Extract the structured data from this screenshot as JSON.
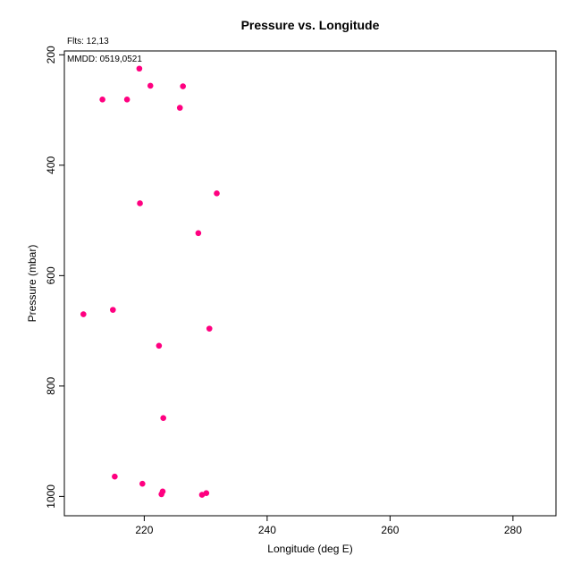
{
  "chart_data": {
    "type": "scatter",
    "title": "Pressure vs. Longitude",
    "xlabel": "Longitude (deg E)",
    "ylabel": "Pressure (mbar)",
    "flts_label": "Flts: 12,13",
    "mmdd_label": "MMDD: 0519,0521",
    "xlim": [
      207,
      287
    ],
    "ylim": [
      1035,
      193
    ],
    "y_inverted": true,
    "x_ticks": [
      220,
      240,
      260,
      280
    ],
    "y_ticks": [
      200,
      400,
      600,
      800,
      1000
    ],
    "marker_color": "#ff0080",
    "points": [
      {
        "x": 219.2,
        "y": 225
      },
      {
        "x": 221.0,
        "y": 256
      },
      {
        "x": 226.3,
        "y": 257
      },
      {
        "x": 213.2,
        "y": 281
      },
      {
        "x": 217.2,
        "y": 281
      },
      {
        "x": 225.8,
        "y": 296
      },
      {
        "x": 231.8,
        "y": 451
      },
      {
        "x": 219.3,
        "y": 469
      },
      {
        "x": 228.8,
        "y": 523
      },
      {
        "x": 214.9,
        "y": 662
      },
      {
        "x": 210.1,
        "y": 670
      },
      {
        "x": 230.6,
        "y": 696
      },
      {
        "x": 222.4,
        "y": 727
      },
      {
        "x": 223.1,
        "y": 858
      },
      {
        "x": 215.2,
        "y": 964
      },
      {
        "x": 219.7,
        "y": 977
      },
      {
        "x": 223.0,
        "y": 991
      },
      {
        "x": 222.8,
        "y": 996
      },
      {
        "x": 230.1,
        "y": 994
      },
      {
        "x": 229.4,
        "y": 997
      }
    ]
  }
}
